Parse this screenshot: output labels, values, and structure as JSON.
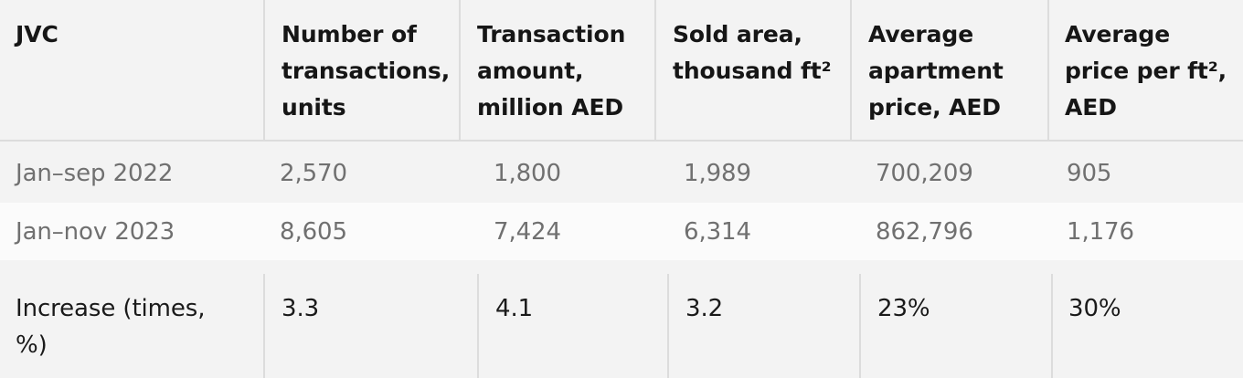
{
  "table": {
    "headers": [
      "JVC",
      "Number of\ntransactions,\nunits",
      "Transaction\namount,\nmillion AED",
      "Sold area,\nthousand ft²",
      "Average\napartment\nprice, AED",
      "Average\nprice per ft²,\nAED"
    ],
    "rows": [
      [
        "Jan–sep 2022",
        "2,570",
        "1,800",
        "1,989",
        "700,209",
        "905"
      ],
      [
        "Jan–nov 2023",
        "8,605",
        "7,424",
        "6,314",
        "862,796",
        "1,176"
      ],
      [
        "Increase (times,\n%)",
        "3.3",
        "4.1",
        "3.2",
        "23%",
        "30%"
      ]
    ]
  }
}
